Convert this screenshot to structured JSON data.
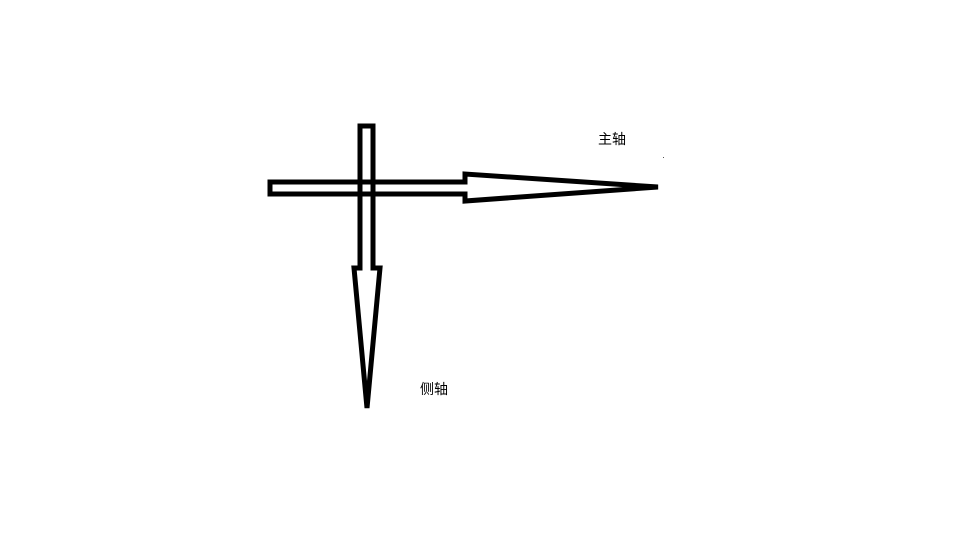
{
  "labels": {
    "main_axis": "主轴",
    "side_axis": "侧轴"
  },
  "colors": {
    "background": "#ffffff",
    "stroke": "#000000"
  }
}
